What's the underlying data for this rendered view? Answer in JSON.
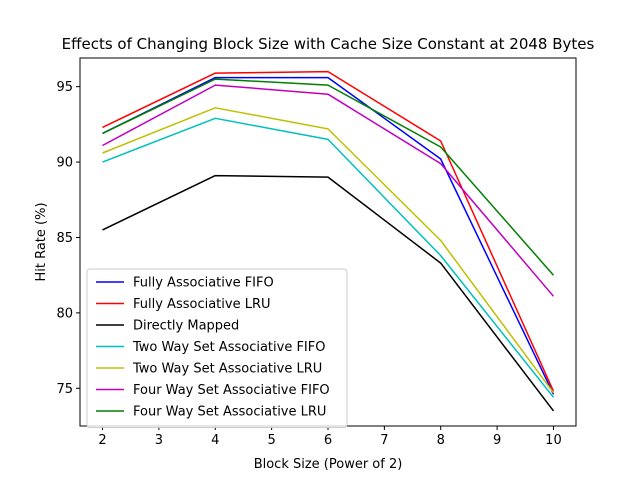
{
  "chart_data": {
    "type": "line",
    "title": "Effects of Changing Block Size with Cache Size Constant at 2048  Bytes",
    "xlabel": "Block Size (Power of 2)",
    "ylabel": "Hit Rate (%)",
    "x": [
      2,
      4,
      6,
      8,
      10
    ],
    "xlim": [
      1.6,
      10.4
    ],
    "ylim": [
      72.5,
      96.9
    ],
    "xticks": [
      2,
      3,
      4,
      5,
      6,
      7,
      8,
      9,
      10
    ],
    "yticks": [
      75,
      80,
      85,
      90,
      95
    ],
    "grid": false,
    "legend_position": "lower-left",
    "series": [
      {
        "name": "Fully Associative FIFO",
        "color": "#0000ff",
        "values": [
          91.9,
          95.6,
          95.6,
          90.2,
          74.6
        ]
      },
      {
        "name": "Fully Associative LRU",
        "color": "#ff0000",
        "values": [
          92.3,
          95.9,
          96.0,
          91.4,
          74.8
        ]
      },
      {
        "name": "Directly Mapped",
        "color": "#000000",
        "values": [
          85.5,
          89.1,
          89.0,
          83.3,
          73.5
        ]
      },
      {
        "name": "Two Way Set Associative FIFO",
        "color": "#00bfbf",
        "values": [
          90.0,
          92.9,
          91.5,
          83.8,
          74.4
        ]
      },
      {
        "name": "Two Way Set Associative LRU",
        "color": "#bfbf00",
        "values": [
          90.6,
          93.6,
          92.2,
          84.8,
          74.7
        ]
      },
      {
        "name": "Four Way Set Associative FIFO",
        "color": "#bf00bf",
        "values": [
          91.1,
          95.1,
          94.5,
          89.9,
          81.1
        ]
      },
      {
        "name": "Four Way Set Associative LRU",
        "color": "#008000",
        "values": [
          91.9,
          95.5,
          95.1,
          91.0,
          82.5
        ]
      }
    ]
  }
}
